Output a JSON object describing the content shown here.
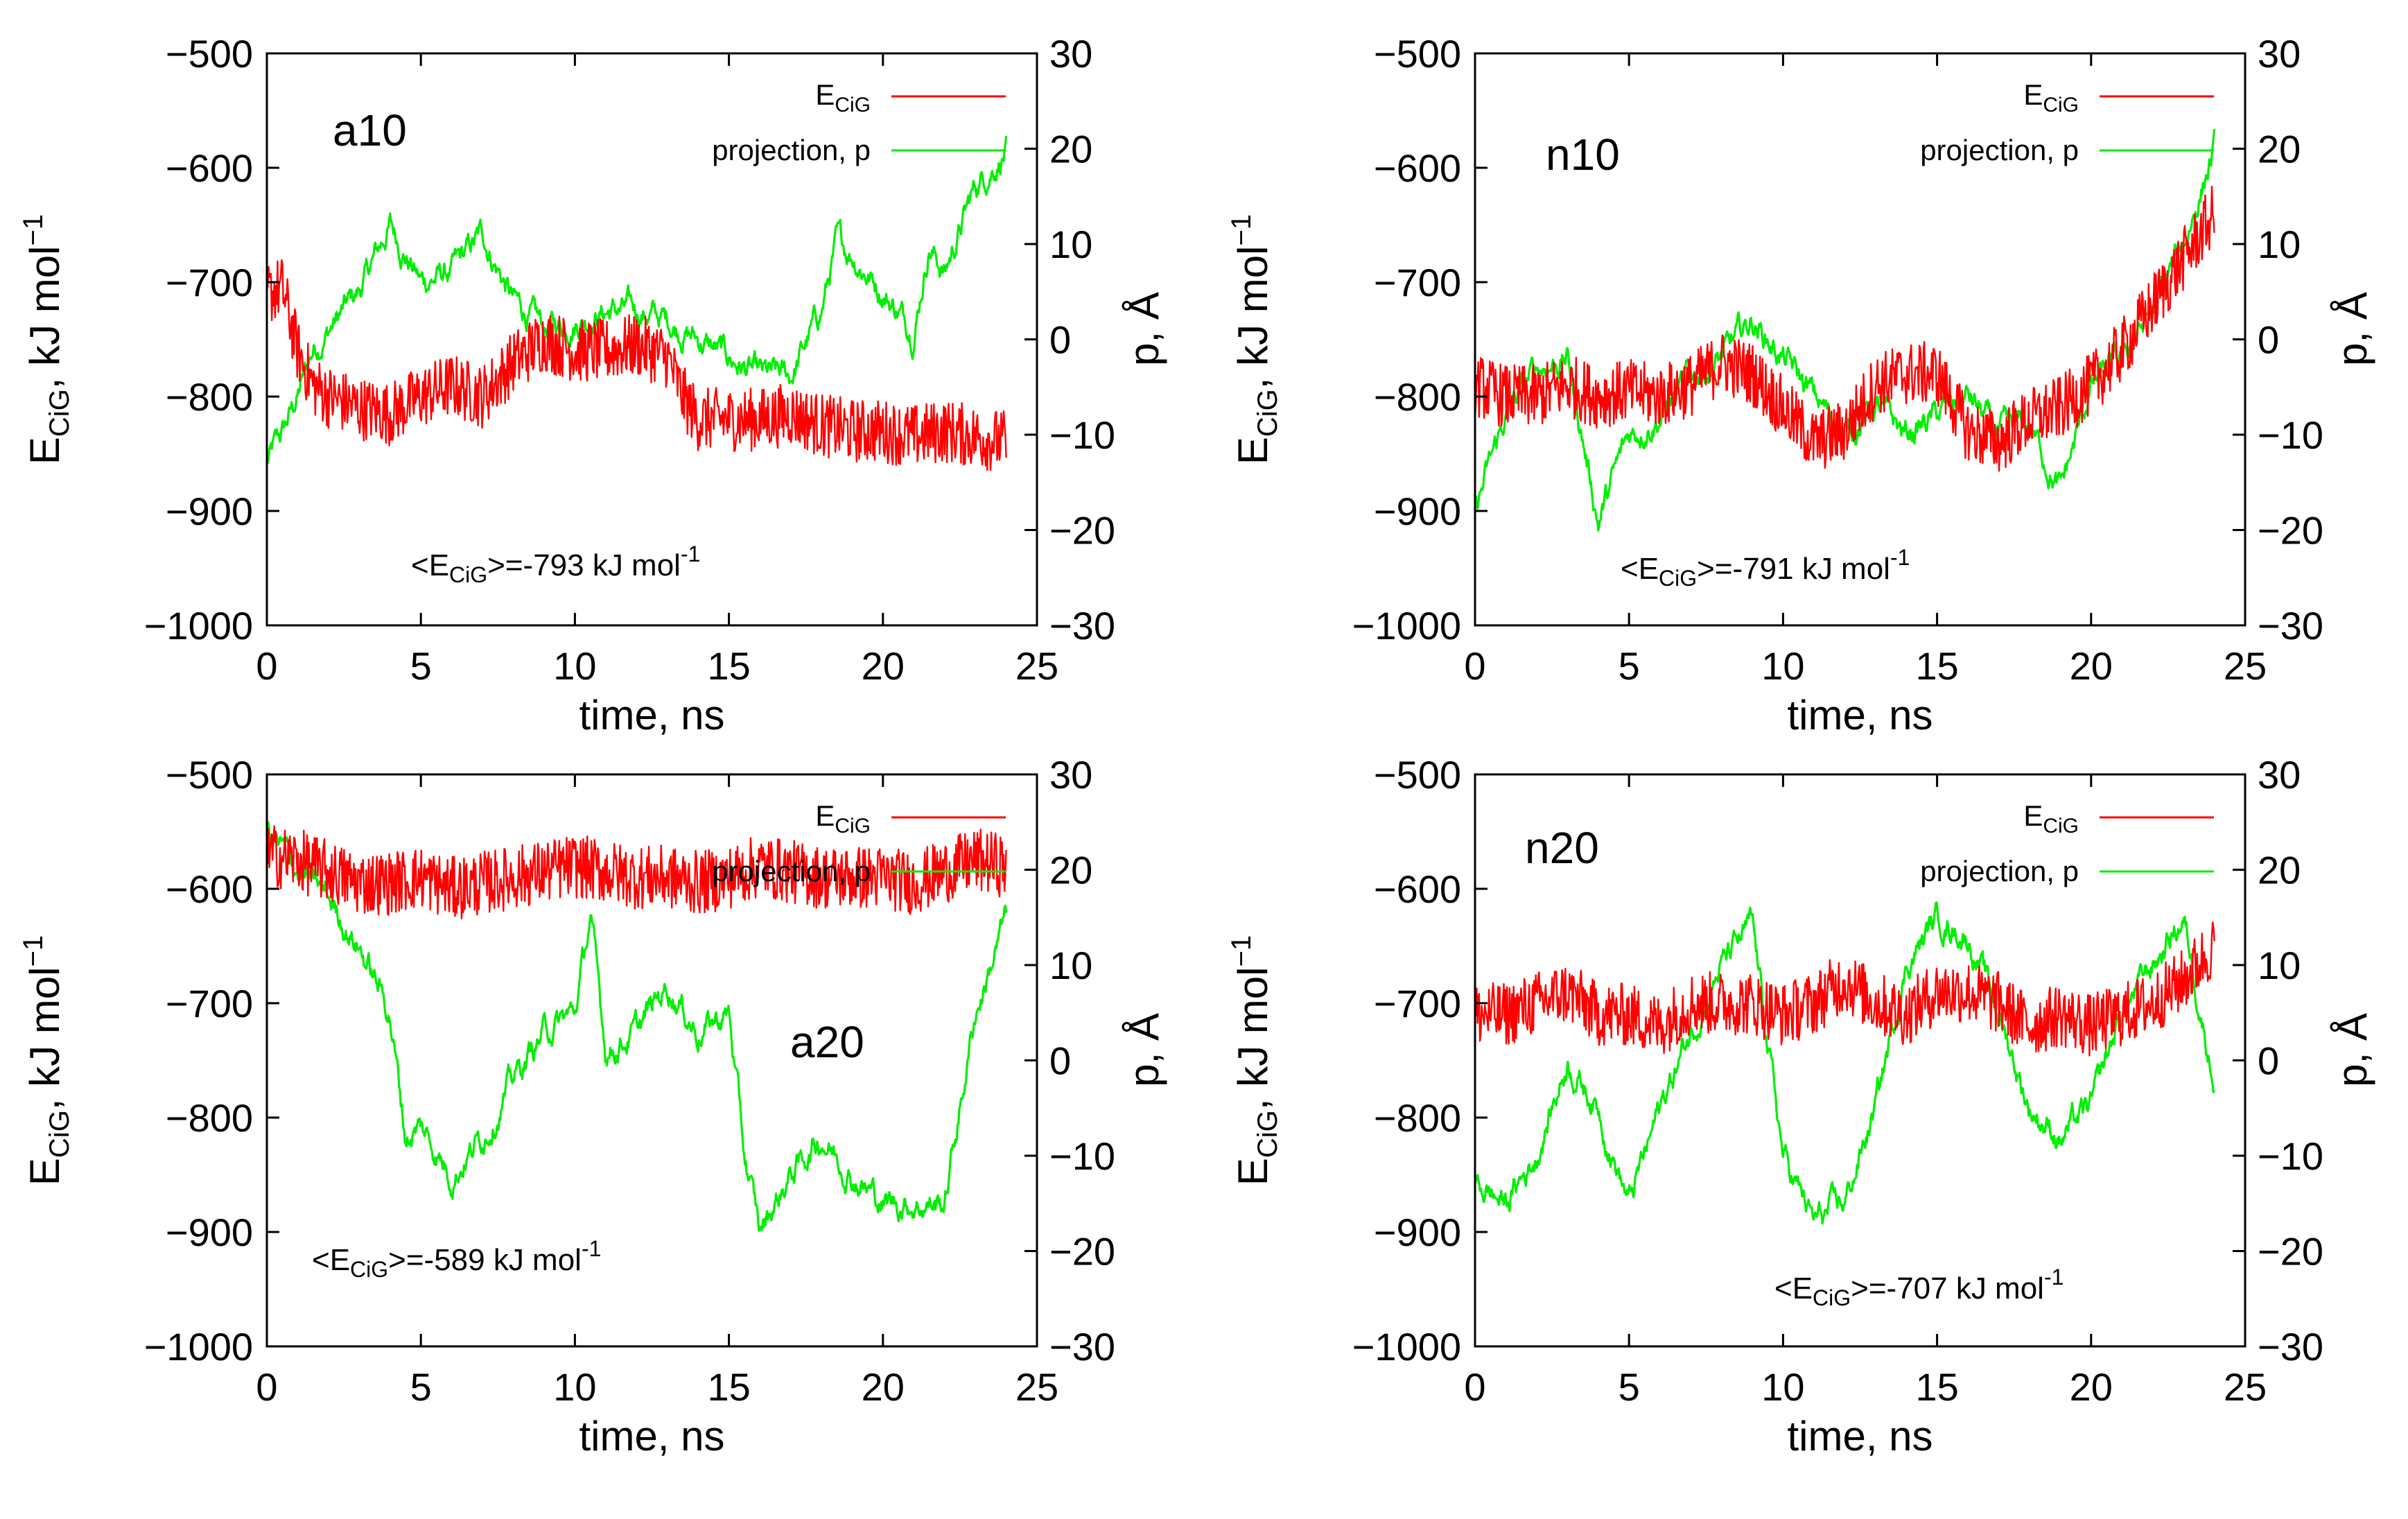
{
  "colors": {
    "energy": "#ff0000",
    "projection": "#00ee00",
    "frame": "#000000"
  },
  "chart_data": [
    {
      "type": "line",
      "panel_label": "a10",
      "xlabel": "time, ns",
      "ylabel": "E_CiG, kJ mol^-1",
      "y2label": "p, Å",
      "xlim": [
        0,
        25
      ],
      "ylim": [
        -1000,
        -500
      ],
      "y2lim": [
        -30,
        30
      ],
      "xticks": [
        "0",
        "5",
        "10",
        "15",
        "20",
        "25"
      ],
      "yticks": [
        "−500",
        "−600",
        "−700",
        "−800",
        "−900",
        "−1000"
      ],
      "y2ticks": [
        "30",
        "20",
        "10",
        "0",
        "−10",
        "−20",
        "−30"
      ],
      "legend_position": "top-right",
      "legend": {
        "energy": "E",
        "energy_sub": "CiG",
        "projection": "projection, p"
      },
      "mean": {
        "prefix": "<E",
        "sub": "CiG",
        "value": ">=-793 kJ mol",
        "sup": "-1"
      },
      "series": [
        {
          "name": "E_CiG",
          "axis": "left",
          "color": "#ff0000",
          "x": [
            0,
            0.5,
            1,
            1.5,
            2,
            3,
            4,
            5,
            6,
            7,
            8,
            9,
            10,
            11,
            12,
            13,
            13.5,
            14,
            15,
            16,
            17,
            18,
            19,
            20,
            21,
            22,
            23,
            24
          ],
          "y": [
            -710,
            -705,
            -760,
            -790,
            -800,
            -810,
            -815,
            -800,
            -790,
            -800,
            -770,
            -750,
            -760,
            -760,
            -755,
            -765,
            -800,
            -820,
            -820,
            -820,
            -815,
            -825,
            -830,
            -830,
            -835,
            -830,
            -835,
            -840
          ]
        },
        {
          "name": "projection, p",
          "axis": "right",
          "color": "#00ee00",
          "x": [
            0,
            0.5,
            1,
            1.5,
            2,
            3,
            4,
            5,
            6,
            7,
            8,
            9,
            10,
            11,
            12,
            13,
            14,
            15,
            16,
            17,
            18,
            18.5,
            19,
            20,
            21,
            21.5,
            22,
            23,
            24
          ],
          "y": [
            -13,
            -10,
            -6,
            -1,
            1,
            5,
            12,
            6,
            7,
            11,
            4,
            1,
            2,
            3,
            3,
            2,
            0,
            -2,
            -4,
            -4,
            3,
            10,
            9,
            5,
            1,
            10,
            7,
            16,
            20
          ]
        }
      ]
    },
    {
      "type": "line",
      "panel_label": "n10",
      "xlabel": "time, ns",
      "ylabel": "E_CiG, kJ mol^-1",
      "y2label": "p, Å",
      "xlim": [
        0,
        25
      ],
      "ylim": [
        -1000,
        -500
      ],
      "y2lim": [
        -30,
        30
      ],
      "xticks": [
        "0",
        "5",
        "10",
        "15",
        "20",
        "25"
      ],
      "yticks": [
        "−500",
        "−600",
        "−700",
        "−800",
        "−900",
        "−1000"
      ],
      "y2ticks": [
        "30",
        "20",
        "10",
        "0",
        "−10",
        "−20",
        "−30"
      ],
      "legend_position": "top-right",
      "legend": {
        "energy": "E",
        "energy_sub": "CiG",
        "projection": "projection, p"
      },
      "mean": {
        "prefix": "<E",
        "sub": "CiG",
        "value": ">=-791 kJ mol",
        "sup": "-1"
      },
      "series": [
        {
          "name": "E_CiG",
          "axis": "left",
          "color": "#ff0000",
          "x": [
            0,
            1,
            2,
            3,
            4,
            5,
            6,
            7,
            8,
            9,
            10,
            11,
            12,
            13,
            14,
            15,
            16,
            17,
            18,
            19,
            20,
            21,
            22,
            23,
            24
          ],
          "y": [
            -790,
            -800,
            -800,
            -790,
            -800,
            -795,
            -800,
            -790,
            -770,
            -780,
            -810,
            -840,
            -830,
            -790,
            -780,
            -780,
            -830,
            -840,
            -820,
            -810,
            -790,
            -760,
            -720,
            -680,
            -640
          ]
        },
        {
          "name": "projection, p",
          "axis": "right",
          "color": "#00ee00",
          "x": [
            0,
            1,
            2,
            3,
            4,
            5,
            6,
            7,
            8,
            9,
            10,
            11,
            12,
            13,
            14,
            15,
            16,
            17,
            18,
            19,
            20,
            21,
            22,
            23,
            24
          ],
          "y": [
            -18,
            -8,
            -3,
            -2,
            -19,
            -10,
            -8,
            -4,
            -2,
            2,
            -2,
            -6,
            -10,
            -7,
            -10,
            -8,
            -6,
            -10,
            -9,
            -16,
            -5,
            -2,
            3,
            10,
            20
          ]
        }
      ]
    },
    {
      "type": "line",
      "panel_label": "a20",
      "xlabel": "time, ns",
      "ylabel": "E_CiG, kJ mol^-1",
      "y2label": "p, Å",
      "xlim": [
        0,
        25
      ],
      "ylim": [
        -1000,
        -500
      ],
      "y2lim": [
        -30,
        30
      ],
      "xticks": [
        "0",
        "5",
        "10",
        "15",
        "20",
        "25"
      ],
      "yticks": [
        "−500",
        "−600",
        "−700",
        "−800",
        "−900",
        "−1000"
      ],
      "y2ticks": [
        "30",
        "20",
        "10",
        "0",
        "−10",
        "−20",
        "−30"
      ],
      "legend_position": "top-right",
      "legend": {
        "energy": "E",
        "energy_sub": "CiG",
        "projection": "projection, p"
      },
      "mean": {
        "prefix": "<E",
        "sub": "CiG",
        "value": ">=-589 kJ mol",
        "sup": "-1"
      },
      "series": [
        {
          "name": "E_CiG",
          "axis": "left",
          "color": "#ff0000",
          "x": [
            0,
            1,
            2,
            3,
            4,
            5,
            6,
            7,
            8,
            9,
            10,
            11,
            12,
            13,
            14,
            15,
            16,
            17,
            18,
            19,
            20,
            21,
            22,
            23,
            24
          ],
          "y": [
            -570,
            -575,
            -585,
            -595,
            -595,
            -590,
            -600,
            -595,
            -590,
            -585,
            -580,
            -585,
            -590,
            -590,
            -595,
            -590,
            -580,
            -585,
            -590,
            -590,
            -590,
            -595,
            -585,
            -575,
            -580
          ]
        },
        {
          "name": "projection, p",
          "axis": "right",
          "color": "#00ee00",
          "x": [
            0,
            1,
            2,
            3,
            4,
            4.5,
            5,
            6,
            7,
            8,
            9,
            10,
            10.5,
            11,
            12,
            13,
            14,
            15,
            15.5,
            16,
            17,
            18,
            19,
            20,
            21,
            22,
            23,
            24
          ],
          "y": [
            24,
            20,
            17,
            12,
            5,
            -8,
            -7,
            -12,
            -8,
            -2,
            3,
            5,
            15,
            1,
            3,
            8,
            3,
            5,
            -10,
            -18,
            -12,
            -8,
            -12,
            -15,
            -15,
            -15,
            5,
            15
          ]
        }
      ]
    },
    {
      "type": "line",
      "panel_label": "n20",
      "xlabel": "time, ns",
      "ylabel": "E_CiG, kJ mol^-1",
      "y2label": "p, Å",
      "xlim": [
        0,
        25
      ],
      "ylim": [
        -1000,
        -500
      ],
      "y2lim": [
        -30,
        30
      ],
      "xticks": [
        "0",
        "5",
        "10",
        "15",
        "20",
        "25"
      ],
      "yticks": [
        "−500",
        "−600",
        "−700",
        "−800",
        "−900",
        "−1000"
      ],
      "y2ticks": [
        "30",
        "20",
        "10",
        "0",
        "−10",
        "−20",
        "−30"
      ],
      "legend_position": "top-right",
      "legend": {
        "energy": "E",
        "energy_sub": "CiG",
        "projection": "projection, p"
      },
      "mean": {
        "prefix": "<E",
        "sub": "CiG",
        "value": ">=-707 kJ mol",
        "sup": "-1"
      },
      "series": [
        {
          "name": "E_CiG",
          "axis": "left",
          "color": "#ff0000",
          "x": [
            0,
            1,
            2,
            3,
            4,
            5,
            6,
            7,
            8,
            9,
            10,
            11,
            12,
            13,
            14,
            15,
            16,
            17,
            18,
            19,
            20,
            21,
            22,
            23,
            24
          ],
          "y": [
            -710,
            -710,
            -700,
            -690,
            -710,
            -710,
            -720,
            -700,
            -700,
            -700,
            -710,
            -700,
            -680,
            -700,
            -710,
            -690,
            -690,
            -700,
            -720,
            -710,
            -720,
            -710,
            -700,
            -680,
            -650
          ]
        },
        {
          "name": "projection, p",
          "axis": "right",
          "color": "#00ee00",
          "x": [
            0,
            1,
            2,
            3,
            4,
            5,
            6,
            7,
            8,
            9,
            10,
            11,
            12,
            13,
            14,
            15,
            16,
            17,
            18,
            19,
            20,
            21,
            22,
            23,
            24
          ],
          "y": [
            -13,
            -15,
            -10,
            0,
            -5,
            -15,
            -5,
            3,
            10,
            14,
            -10,
            -17,
            -15,
            -5,
            10,
            15,
            13,
            5,
            -5,
            -8,
            -5,
            5,
            10,
            15,
            -2
          ]
        }
      ]
    }
  ]
}
